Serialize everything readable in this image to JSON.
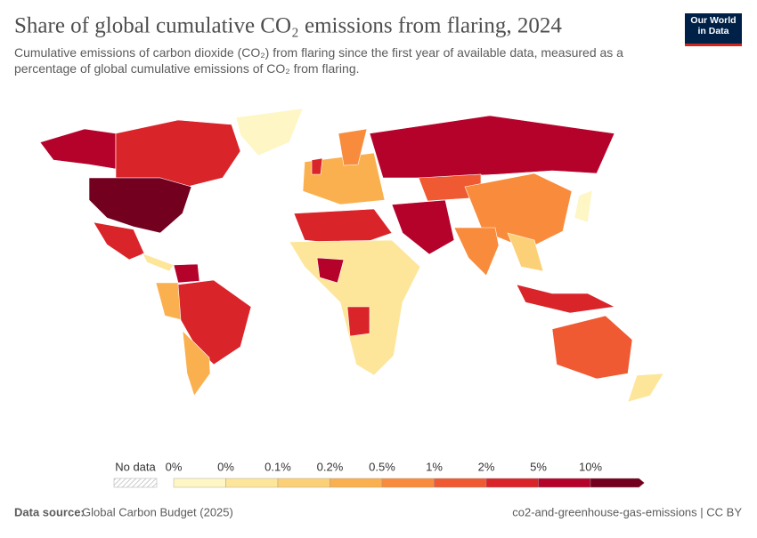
{
  "header": {
    "title": "Share of global cumulative CO₂ emissions from flaring, 2024",
    "subtitle": "Cumulative emissions of carbon dioxide (CO₂) from flaring since the first year of available data, measured as a percentage of global cumulative emissions of CO₂ from flaring.",
    "logo": "Our World\nin Data"
  },
  "legend": {
    "no_data": "No data",
    "labels": [
      "0%",
      "0%",
      "0.1%",
      "0.2%",
      "0.5%",
      "1%",
      "2%",
      "5%",
      "10%"
    ],
    "colors": [
      "#fef6c4",
      "#fde69a",
      "#fcd077",
      "#fbb04f",
      "#f98c3c",
      "#ef5a32",
      "#d9242a",
      "#b5022b",
      "#73001f"
    ]
  },
  "footer": {
    "source_label": "Data source:",
    "source": "Global Carbon Budget (2025)",
    "credit": "co2-and-greenhouse-gas-emissions | CC BY"
  }
}
